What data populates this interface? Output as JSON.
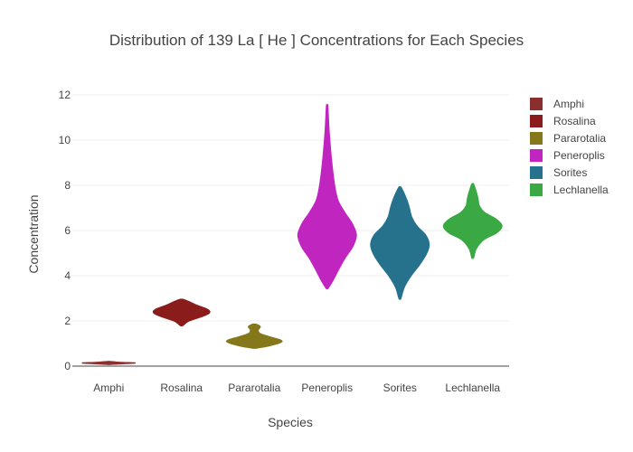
{
  "chart_data": {
    "type": "violin",
    "title": "Distribution of 139  La  [ He ]  Concentrations for Each Species",
    "xlabel": "Species",
    "ylabel": "Concentration",
    "ylim": [
      0,
      12.6
    ],
    "yticks": [
      0,
      2,
      4,
      6,
      8,
      10,
      12
    ],
    "grid": true,
    "legend_position": "right",
    "categories": [
      "Amphi",
      "Rosalina",
      "Pararotalia",
      "Peneroplis",
      "Sorites",
      "Lechlanella"
    ],
    "series": [
      {
        "name": "Amphi",
        "color": "#8B2E2E",
        "profile": [
          [
            0.08,
            0.04
          ],
          [
            0.12,
            0.6
          ],
          [
            0.14,
            0.9
          ],
          [
            0.16,
            0.45
          ],
          [
            0.2,
            0.04
          ]
        ]
      },
      {
        "name": "Rosalina",
        "color": "#8B1C1C",
        "profile": [
          [
            1.8,
            0.04
          ],
          [
            2.0,
            0.25
          ],
          [
            2.2,
            0.7
          ],
          [
            2.35,
            0.95
          ],
          [
            2.5,
            0.9
          ],
          [
            2.7,
            0.5
          ],
          [
            2.85,
            0.25
          ],
          [
            2.95,
            0.05
          ]
        ]
      },
      {
        "name": "Pararotalia",
        "color": "#85781B",
        "profile": [
          [
            0.8,
            0.06
          ],
          [
            0.9,
            0.5
          ],
          [
            1.05,
            0.9
          ],
          [
            1.15,
            0.9
          ],
          [
            1.3,
            0.5
          ],
          [
            1.45,
            0.18
          ],
          [
            1.6,
            0.13
          ],
          [
            1.75,
            0.2
          ],
          [
            1.85,
            0.06
          ]
        ]
      },
      {
        "name": "Peneroplis",
        "color": "#C026BF",
        "profile": [
          [
            3.45,
            0.03
          ],
          [
            3.8,
            0.2
          ],
          [
            4.3,
            0.4
          ],
          [
            4.8,
            0.62
          ],
          [
            5.3,
            0.88
          ],
          [
            5.8,
            1.0
          ],
          [
            6.3,
            0.86
          ],
          [
            6.8,
            0.6
          ],
          [
            7.3,
            0.38
          ],
          [
            7.8,
            0.28
          ],
          [
            8.5,
            0.2
          ],
          [
            9.5,
            0.12
          ],
          [
            10.5,
            0.06
          ],
          [
            11.5,
            0.02
          ]
        ]
      },
      {
        "name": "Sorites",
        "color": "#26718C",
        "profile": [
          [
            3.0,
            0.03
          ],
          [
            3.5,
            0.15
          ],
          [
            4.0,
            0.38
          ],
          [
            4.5,
            0.68
          ],
          [
            5.0,
            0.92
          ],
          [
            5.4,
            1.0
          ],
          [
            5.8,
            0.88
          ],
          [
            6.2,
            0.58
          ],
          [
            6.6,
            0.4
          ],
          [
            7.0,
            0.32
          ],
          [
            7.4,
            0.22
          ],
          [
            7.9,
            0.04
          ]
        ]
      },
      {
        "name": "Lechlanella",
        "color": "#3AA843",
        "profile": [
          [
            4.8,
            0.03
          ],
          [
            5.2,
            0.12
          ],
          [
            5.6,
            0.38
          ],
          [
            5.9,
            0.82
          ],
          [
            6.2,
            1.0
          ],
          [
            6.5,
            0.8
          ],
          [
            6.8,
            0.4
          ],
          [
            7.1,
            0.22
          ],
          [
            7.4,
            0.18
          ],
          [
            7.7,
            0.12
          ],
          [
            8.05,
            0.03
          ]
        ]
      }
    ]
  }
}
